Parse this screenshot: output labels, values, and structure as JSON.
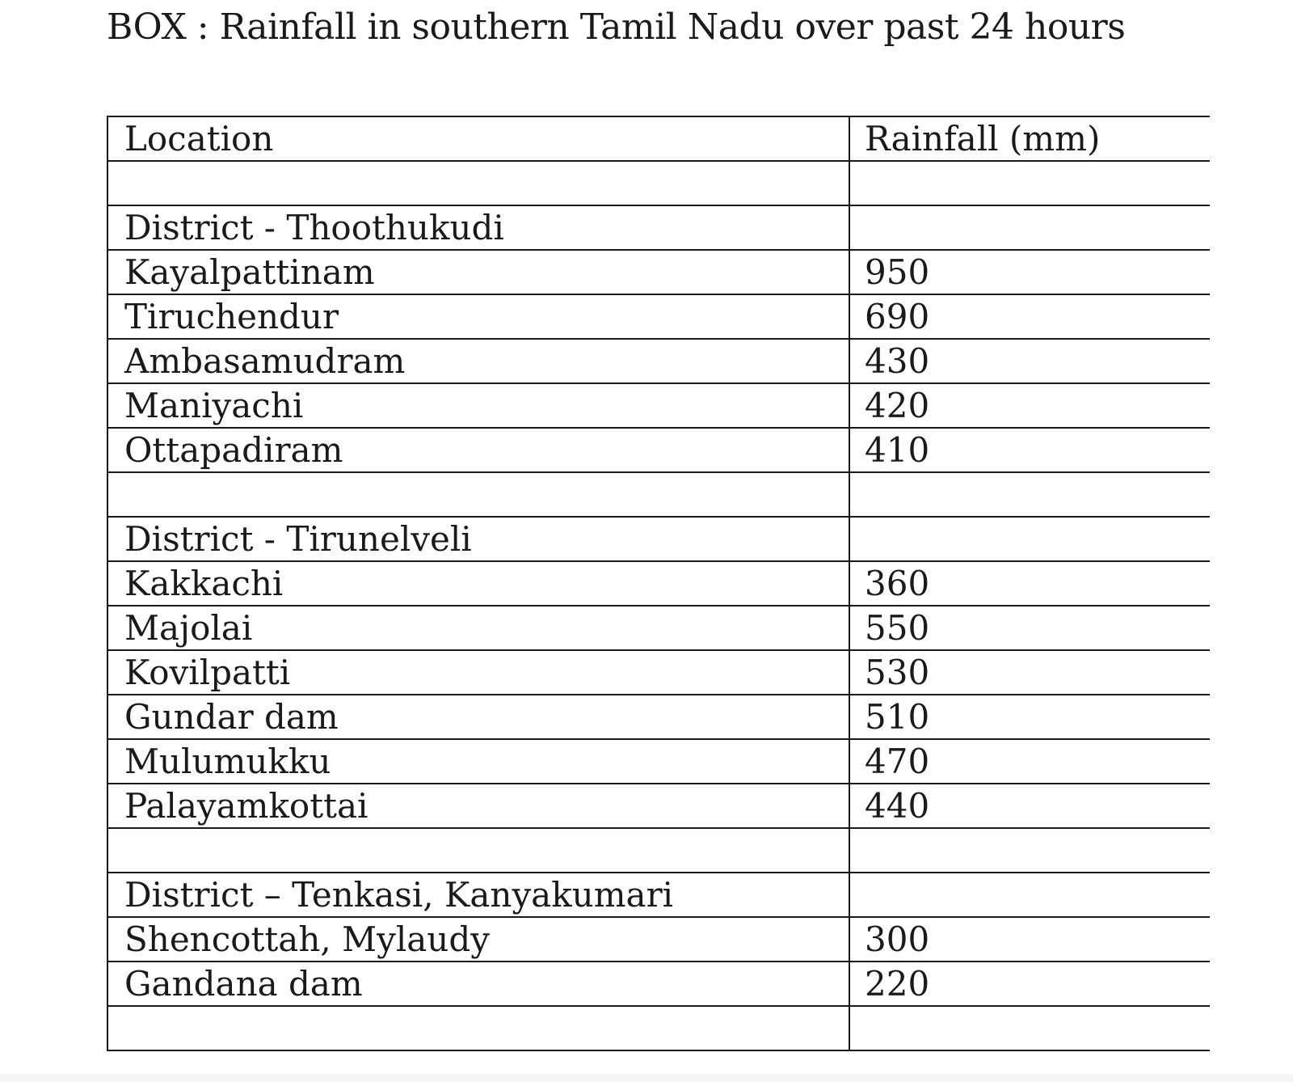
{
  "document": {
    "title": "BOX : Rainfall in southern Tamil Nadu over past 24 hours",
    "table": {
      "header": {
        "location": "Location",
        "rainfall": "Rainfall (mm)"
      },
      "rows": [
        {
          "location": "",
          "rainfall": ""
        },
        {
          "location": "District - Thoothukudi",
          "rainfall": ""
        },
        {
          "location": "Kayalpattinam",
          "rainfall": "950"
        },
        {
          "location": "Tiruchendur",
          "rainfall": "690"
        },
        {
          "location": "Ambasamudram",
          "rainfall": "430"
        },
        {
          "location": "Maniyachi",
          "rainfall": "420"
        },
        {
          "location": "Ottapadiram",
          "rainfall": "410"
        },
        {
          "location": "",
          "rainfall": ""
        },
        {
          "location": "District - Tirunelveli",
          "rainfall": ""
        },
        {
          "location": "Kakkachi",
          "rainfall": "360"
        },
        {
          "location": "Majolai",
          "rainfall": "550"
        },
        {
          "location": "Kovilpatti",
          "rainfall": "530"
        },
        {
          "location": "Gundar dam",
          "rainfall": "510"
        },
        {
          "location": "Mulumukku",
          "rainfall": "470"
        },
        {
          "location": "Palayamkottai",
          "rainfall": "440"
        },
        {
          "location": "",
          "rainfall": ""
        },
        {
          "location": "District – Tenkasi, Kanyakumari",
          "rainfall": ""
        },
        {
          "location": "Shencottah, Mylaudy",
          "rainfall": "300"
        },
        {
          "location": "Gandana dam",
          "rainfall": "220"
        },
        {
          "location": "",
          "rainfall": ""
        }
      ]
    }
  }
}
